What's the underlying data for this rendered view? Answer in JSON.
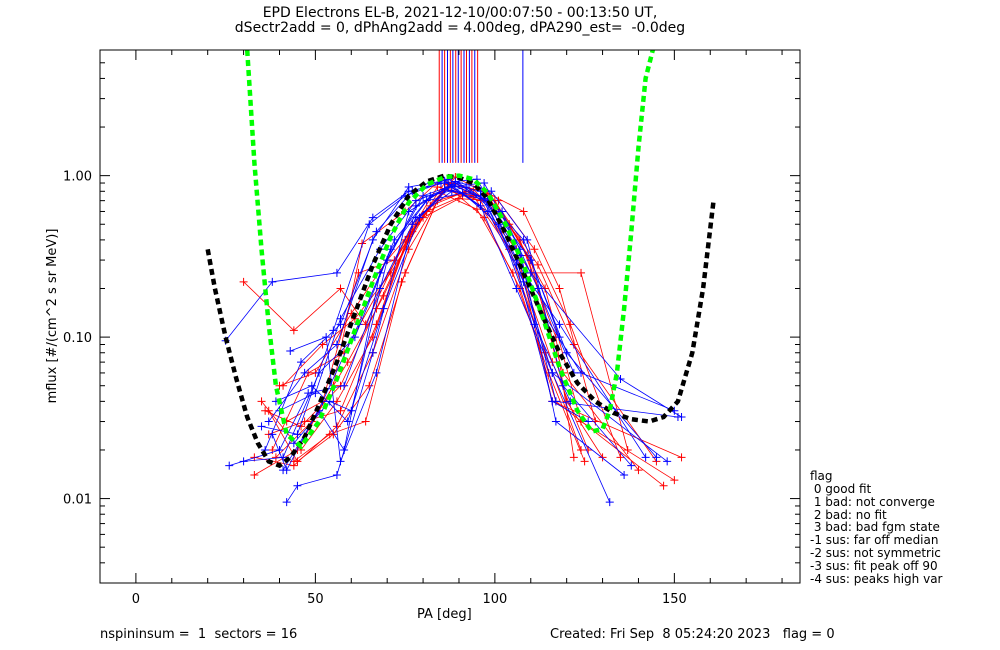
{
  "chart_data": {
    "type": "line",
    "title": "EPD Electrons EL-B, 2021-12-10/00:07:50 - 00:13:50 UT,",
    "subtitle": "dSectr2add = 0, dPhAng2add = 4.00deg, dPA290_est=  -0.0deg",
    "xlabel": "PA [deg]",
    "ylabel": "mflux [#/(cm^2 s sr MeV)]",
    "xlim": [
      -10,
      185
    ],
    "ylim": [
      0.003,
      6.0
    ],
    "y_scale": "log",
    "x_ticks": [
      0,
      50,
      100,
      150
    ],
    "x_tick_labels": [
      "0",
      "50",
      "100",
      "150"
    ],
    "y_ticks": [
      0.01,
      0.1,
      1.0
    ],
    "y_tick_labels": [
      "0.01",
      "0.10",
      "1.00"
    ],
    "grid": false,
    "series_colors": {
      "red_spectra": "#ff0000",
      "blue_spectra": "#0000ff",
      "black_fit": "#000000",
      "green_fit": "#00ff00"
    },
    "series": [
      {
        "color": "red",
        "x": [
          37,
          45,
          55,
          65,
          75,
          85,
          95,
          105,
          115,
          125
        ],
        "y": [
          0.035,
          0.017,
          0.025,
          0.05,
          0.25,
          0.78,
          0.62,
          0.25,
          0.06,
          0.017
        ]
      },
      {
        "color": "red",
        "x": [
          33,
          44,
          56,
          66,
          76,
          86,
          96,
          106,
          116,
          126
        ],
        "y": [
          0.018,
          0.016,
          0.028,
          0.08,
          0.35,
          0.82,
          0.7,
          0.3,
          0.07,
          0.02
        ]
      },
      {
        "color": "red",
        "x": [
          30,
          44,
          57,
          64,
          75,
          84,
          94,
          104,
          114,
          124
        ],
        "y": [
          0.22,
          0.11,
          0.2,
          0.12,
          0.4,
          0.85,
          0.75,
          0.35,
          0.08,
          0.02
        ]
      },
      {
        "color": "red",
        "x": [
          36,
          46,
          57,
          67,
          77,
          87,
          97,
          107,
          117,
          122
        ],
        "y": [
          0.035,
          0.028,
          0.05,
          0.15,
          0.45,
          0.88,
          0.8,
          0.4,
          0.1,
          0.018
        ]
      },
      {
        "color": "red",
        "x": [
          38,
          48,
          58,
          68,
          78,
          88,
          98,
          108,
          118,
          128
        ],
        "y": [
          0.02,
          0.06,
          0.08,
          0.2,
          0.5,
          0.9,
          0.78,
          0.6,
          0.2,
          0.03
        ]
      },
      {
        "color": "red",
        "x": [
          40,
          50,
          60,
          70,
          80,
          90,
          100,
          110,
          120,
          130
        ],
        "y": [
          0.05,
          0.06,
          0.14,
          0.3,
          0.55,
          0.72,
          0.7,
          0.3,
          0.04,
          0.018
        ]
      },
      {
        "color": "red",
        "x": [
          33,
          45,
          55,
          63,
          75,
          85,
          97,
          110,
          124,
          137
        ],
        "y": [
          0.014,
          0.02,
          0.05,
          0.38,
          0.6,
          0.95,
          0.72,
          0.25,
          0.25,
          0.02
        ]
      },
      {
        "color": "red",
        "x": [
          41,
          52,
          61,
          71,
          81,
          91,
          101,
          111,
          121,
          135
        ],
        "y": [
          0.05,
          0.09,
          0.13,
          0.25,
          0.6,
          0.75,
          0.7,
          0.35,
          0.12,
          0.018
        ]
      },
      {
        "color": "red",
        "x": [
          39,
          49,
          59,
          69,
          79,
          89,
          99,
          109,
          119,
          140
        ],
        "y": [
          0.018,
          0.03,
          0.07,
          0.18,
          0.55,
          0.98,
          0.75,
          0.32,
          0.06,
          0.015
        ]
      },
      {
        "color": "red",
        "x": [
          42,
          52,
          62,
          72,
          82,
          92,
          102,
          112,
          122,
          145
        ],
        "y": [
          0.03,
          0.04,
          0.25,
          0.3,
          0.65,
          0.8,
          0.6,
          0.28,
          0.09,
          0.017
        ]
      },
      {
        "color": "red",
        "x": [
          44,
          54,
          64,
          74,
          84,
          94,
          104,
          114,
          124,
          150
        ],
        "y": [
          0.017,
          0.025,
          0.03,
          0.22,
          0.7,
          0.82,
          0.5,
          0.2,
          0.03,
          0.013
        ]
      },
      {
        "color": "red",
        "x": [
          35,
          46,
          56,
          66,
          76,
          86,
          96,
          106,
          116,
          152
        ],
        "y": [
          0.04,
          0.02,
          0.04,
          0.1,
          0.42,
          0.9,
          0.65,
          0.35,
          0.04,
          0.018
        ]
      },
      {
        "color": "red",
        "x": [
          37,
          47,
          57,
          67,
          77,
          87,
          97,
          107,
          117,
          147
        ],
        "y": [
          0.025,
          0.03,
          0.035,
          0.12,
          0.5,
          0.85,
          0.55,
          0.2,
          0.04,
          0.012
        ]
      },
      {
        "color": "blue",
        "x": [
          25,
          38,
          56,
          66,
          76,
          86,
          96,
          106,
          116,
          126
        ],
        "y": [
          0.095,
          0.22,
          0.25,
          0.55,
          0.8,
          0.9,
          0.8,
          0.28,
          0.04,
          0.03
        ]
      },
      {
        "color": "blue",
        "x": [
          26,
          40,
          48,
          58,
          68,
          78,
          88,
          98,
          108,
          118
        ],
        "y": [
          0.016,
          0.02,
          0.045,
          0.05,
          0.2,
          0.55,
          0.8,
          0.7,
          0.4,
          0.1
        ]
      },
      {
        "color": "blue",
        "x": [
          38,
          42,
          52,
          62,
          72,
          82,
          92,
          102,
          112,
          122
        ],
        "y": [
          0.025,
          0.015,
          0.04,
          0.12,
          0.4,
          0.75,
          0.85,
          0.6,
          0.2,
          0.06
        ]
      },
      {
        "color": "blue",
        "x": [
          30,
          41,
          51,
          61,
          71,
          81,
          91,
          101,
          111,
          121
        ],
        "y": [
          0.017,
          0.018,
          0.06,
          0.1,
          0.35,
          0.7,
          0.78,
          0.5,
          0.12,
          0.04
        ]
      },
      {
        "color": "blue",
        "x": [
          42,
          45,
          56,
          66,
          76,
          86,
          96,
          106,
          116,
          132
        ],
        "y": [
          0.0095,
          0.012,
          0.014,
          0.08,
          0.6,
          0.82,
          0.75,
          0.3,
          0.06,
          0.0095
        ]
      },
      {
        "color": "blue",
        "x": [
          43,
          53,
          57,
          67,
          77,
          87,
          97,
          107,
          117,
          136
        ],
        "y": [
          0.082,
          0.1,
          0.017,
          0.06,
          0.5,
          0.85,
          0.9,
          0.35,
          0.03,
          0.014
        ]
      },
      {
        "color": "blue",
        "x": [
          39,
          49,
          59,
          69,
          79,
          89,
          99,
          109,
          119,
          138
        ],
        "y": [
          0.04,
          0.05,
          0.03,
          0.15,
          0.55,
          0.92,
          0.8,
          0.4,
          0.05,
          0.016
        ]
      },
      {
        "color": "blue",
        "x": [
          41,
          51,
          58,
          68,
          78,
          88,
          98,
          108,
          118,
          142
        ],
        "y": [
          0.015,
          0.035,
          0.02,
          0.25,
          0.65,
          0.88,
          0.7,
          0.25,
          0.12,
          0.018
        ]
      },
      {
        "color": "blue",
        "x": [
          44,
          54,
          60,
          70,
          80,
          90,
          100,
          110,
          120,
          145
        ],
        "y": [
          0.022,
          0.04,
          0.035,
          0.3,
          0.75,
          0.9,
          0.6,
          0.3,
          0.08,
          0.018
        ]
      },
      {
        "color": "blue",
        "x": [
          37,
          47,
          56,
          66,
          76,
          86,
          96,
          106,
          116,
          148
        ],
        "y": [
          0.03,
          0.06,
          0.09,
          0.4,
          0.85,
          0.93,
          0.65,
          0.2,
          0.06,
          0.017
        ]
      },
      {
        "color": "blue",
        "x": [
          36,
          46,
          57,
          67,
          77,
          87,
          97,
          107,
          117,
          151
        ],
        "y": [
          0.02,
          0.07,
          0.12,
          0.45,
          0.8,
          0.95,
          0.72,
          0.32,
          0.04,
          0.032
        ]
      },
      {
        "color": "blue",
        "x": [
          40,
          50,
          57,
          68,
          78,
          88,
          98,
          108,
          124,
          150
        ],
        "y": [
          0.035,
          0.045,
          0.13,
          0.35,
          0.7,
          0.85,
          0.6,
          0.22,
          0.06,
          0.035
        ]
      },
      {
        "color": "blue",
        "x": [
          35,
          45,
          55,
          65,
          75,
          85,
          95,
          110,
          135,
          152
        ],
        "y": [
          0.028,
          0.025,
          0.11,
          0.5,
          0.75,
          0.9,
          0.95,
          0.25,
          0.055,
          0.032
        ]
      }
    ],
    "fits": [
      {
        "name": "black-dashed",
        "color": "black",
        "x": [
          20,
          22,
          25,
          28,
          31,
          34,
          37,
          40,
          43,
          47,
          51,
          56,
          61,
          66,
          71,
          76,
          81,
          86,
          90,
          94,
          98,
          103,
          108,
          113,
          118,
          123,
          128,
          133,
          138,
          143,
          147,
          151,
          155,
          158,
          161
        ],
        "y": [
          0.35,
          0.2,
          0.1,
          0.055,
          0.032,
          0.022,
          0.017,
          0.016,
          0.018,
          0.024,
          0.038,
          0.07,
          0.14,
          0.28,
          0.5,
          0.75,
          0.92,
          1.0,
          0.97,
          0.9,
          0.72,
          0.44,
          0.25,
          0.14,
          0.08,
          0.052,
          0.04,
          0.034,
          0.031,
          0.03,
          0.032,
          0.04,
          0.08,
          0.2,
          0.72
        ]
      },
      {
        "name": "green-dashed",
        "color": "green",
        "x": [
          31,
          33,
          35,
          37,
          39,
          42,
          46,
          51,
          56,
          61,
          66,
          71,
          76,
          81,
          86,
          90,
          94,
          98,
          103,
          108,
          113,
          118,
          123,
          127,
          130,
          132,
          134,
          136,
          138,
          140,
          142,
          144
        ],
        "y": [
          6.0,
          1.2,
          0.35,
          0.12,
          0.05,
          0.025,
          0.021,
          0.03,
          0.055,
          0.11,
          0.22,
          0.42,
          0.68,
          0.88,
          0.98,
          1.0,
          0.95,
          0.78,
          0.5,
          0.28,
          0.14,
          0.065,
          0.035,
          0.026,
          0.027,
          0.035,
          0.06,
          0.15,
          0.45,
          1.5,
          4.0,
          6.0
        ]
      }
    ],
    "vertical_marks": [
      {
        "color": "red",
        "x": 84.5
      },
      {
        "color": "blue",
        "x": 85.3
      },
      {
        "color": "red",
        "x": 86.0
      },
      {
        "color": "blue",
        "x": 86.8
      },
      {
        "color": "red",
        "x": 87.6
      },
      {
        "color": "blue",
        "x": 88.3
      },
      {
        "color": "red",
        "x": 89.1
      },
      {
        "color": "blue",
        "x": 89.8
      },
      {
        "color": "red",
        "x": 90.6
      },
      {
        "color": "blue",
        "x": 91.4
      },
      {
        "color": "red",
        "x": 92.1
      },
      {
        "color": "blue",
        "x": 92.9
      },
      {
        "color": "red",
        "x": 93.6
      },
      {
        "color": "blue",
        "x": 94.4
      },
      {
        "color": "red",
        "x": 95.2
      },
      {
        "color": "blue",
        "x": 107.8
      }
    ],
    "vertical_marks_ymin": 1.2
  },
  "legend": {
    "title": "flag",
    "items": [
      " 0 good fit",
      " 1 bad: not converge",
      " 2 bad: no fit",
      " 3 bad: bad fgm state",
      "-1 sus: far off median",
      "-2 sus: not symmetric",
      "-3 sus: fit peak off 90",
      "-4 sus: peaks high var"
    ]
  },
  "footer": {
    "left": "nspininsum =  1  sectors = 16",
    "right": "Created: Fri Sep  8 05:24:20 2023   flag = 0"
  }
}
